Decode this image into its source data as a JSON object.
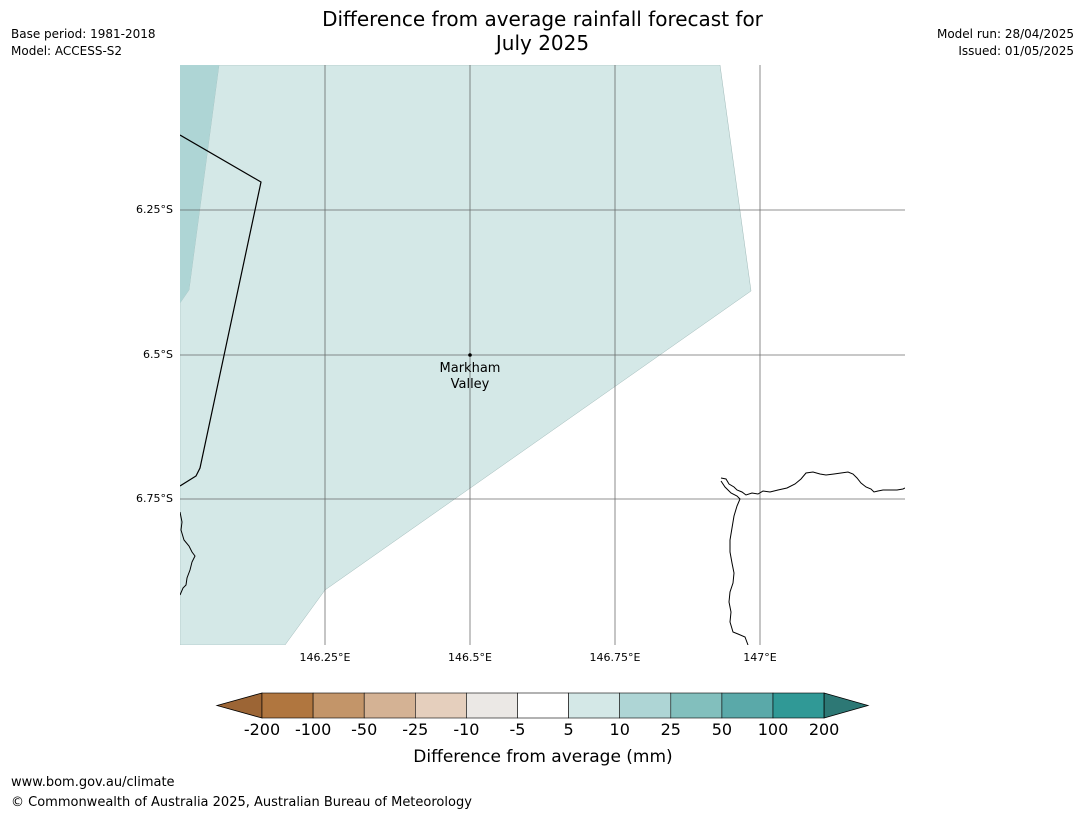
{
  "title_line1": "Difference from average rainfall forecast for",
  "title_line2": "July 2025",
  "meta_left": {
    "base_period": "Base period: 1981-2018",
    "model": "Model: ACCESS-S2"
  },
  "meta_right": {
    "model_run": "Model run: 28/04/2025",
    "issued": "Issued: 01/05/2025"
  },
  "map": {
    "lat_ticks": [
      "6.25°S",
      "6.5°S",
      "6.75°S"
    ],
    "lon_ticks": [
      "146.25°E",
      "146.5°E",
      "146.75°E",
      "147°E"
    ],
    "location": {
      "name_line1": "Markham",
      "name_line2": "Valley"
    },
    "colors": {
      "category_5_10": "#d4e8e7",
      "category_10_25": "#aed5d5"
    }
  },
  "colorbar": {
    "title": "Difference from average (mm)",
    "labels": [
      "-200",
      "-100",
      "-50",
      "-25",
      "-10",
      "-5",
      "5",
      "10",
      "25",
      "50",
      "100",
      "200"
    ],
    "colors": [
      "#9c6535",
      "#b0763f",
      "#c39569",
      "#d4b294",
      "#e5cfbd",
      "#ebe8e5",
      "#ffffff",
      "#d4e8e7",
      "#aed5d5",
      "#82bfbd",
      "#5aa9a9",
      "#309996",
      "#2d7875"
    ]
  },
  "footer": {
    "url": "www.bom.gov.au/climate",
    "copyright": "© Commonwealth of Australia 2025, Australian Bureau of Meteorology"
  }
}
